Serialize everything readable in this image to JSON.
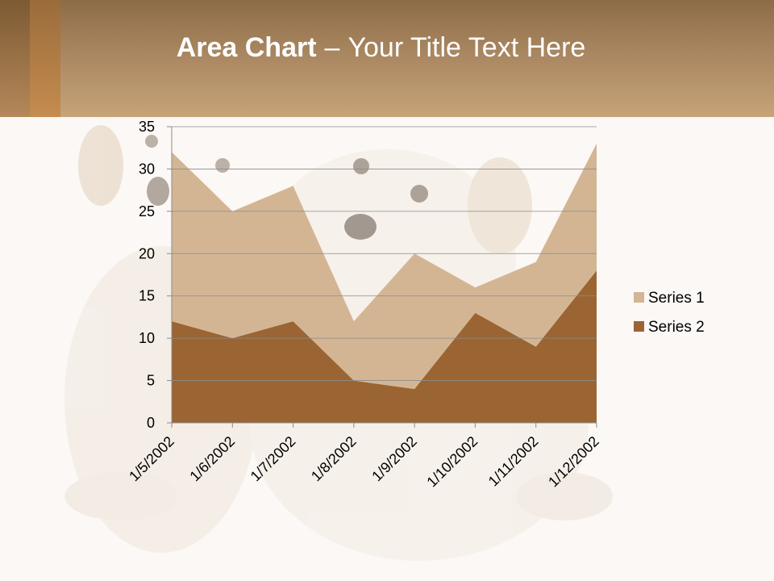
{
  "slide": {
    "title_bold": "Area Chart",
    "title_dash": "–",
    "title_rest": "Your Title Text Here"
  },
  "colors": {
    "header": "#a88660",
    "background": "#fbf8f5",
    "series1": "#d3b594",
    "series2": "#9a6533"
  },
  "chart_data": {
    "type": "area",
    "stacked": true,
    "categories": [
      "1/5/2002",
      "1/6/2002",
      "1/7/2002",
      "1/8/2002",
      "1/9/2002",
      "1/10/2002",
      "1/11/2002",
      "1/12/2002"
    ],
    "series": [
      {
        "name": "Series 1",
        "values": [
          20,
          15,
          16,
          7,
          16,
          3,
          10,
          15
        ],
        "color": "#d3b594"
      },
      {
        "name": "Series 2",
        "values": [
          12,
          10,
          12,
          5,
          4,
          13,
          9,
          18
        ],
        "color": "#9a6533"
      }
    ],
    "ylim": [
      0,
      35
    ],
    "yticks": [
      0,
      5,
      10,
      15,
      20,
      25,
      30,
      35
    ],
    "grid": true,
    "legend": "right"
  }
}
